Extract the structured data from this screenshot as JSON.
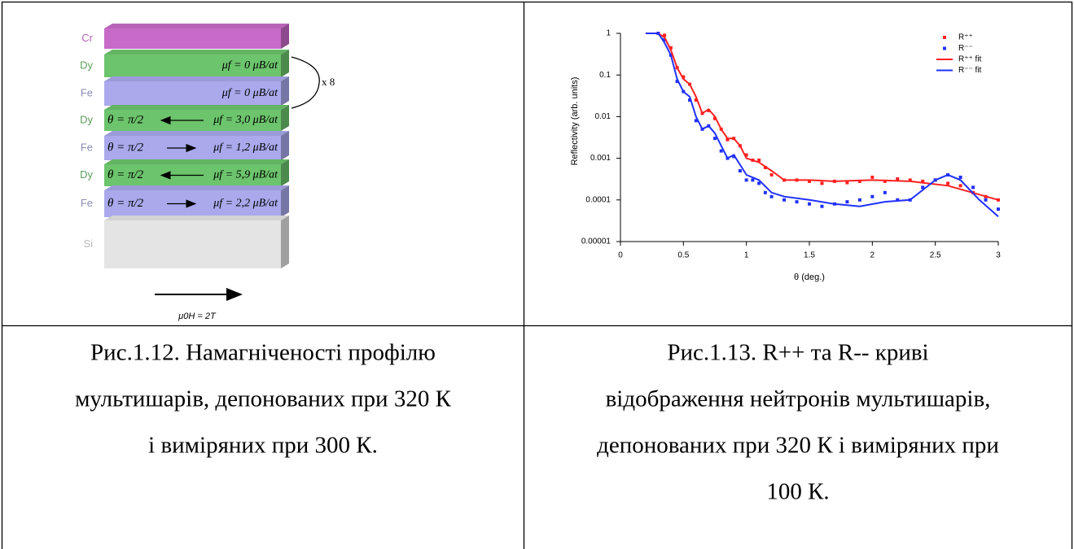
{
  "diagram": {
    "layers": [
      {
        "label": "Cr",
        "label_color": "#b463b4",
        "color": "#c86ac8"
      },
      {
        "label": "Dy",
        "label_color": "#5a9e5a",
        "color": "#6cc46c",
        "moment": "μf = 0 μB/at"
      },
      {
        "label": "Fe",
        "label_color": "#8a8ab8",
        "color": "#a9a9ec",
        "moment": "μf = 0 μB/at"
      },
      {
        "label": "Dy",
        "label_color": "#5a9e5a",
        "color": "#6cc46c",
        "angle": "θ = π/2",
        "arrow": "left",
        "moment": "μf = 3,0 μB/at"
      },
      {
        "label": "Fe",
        "label_color": "#8a8ab8",
        "color": "#a9a9ec",
        "angle": "θ = π/2",
        "arrow": "right",
        "moment": "μf = 1,2 μB/at"
      },
      {
        "label": "Dy",
        "label_color": "#5a9e5a",
        "color": "#6cc46c",
        "angle": "θ = π/2",
        "arrow": "left",
        "moment": "μf = 5,9 μB/at"
      },
      {
        "label": "Fe",
        "label_color": "#8a8ab8",
        "color": "#a9a9ec",
        "angle": "θ = π/2",
        "arrow": "right",
        "moment": "μf = 2,2 μB/at"
      },
      {
        "label": "Si",
        "label_color": "#bbbbbb",
        "color": "#e4e4e4"
      }
    ],
    "repeat": "x 8",
    "field": "μ0H = 2T"
  },
  "chart_data": {
    "type": "line",
    "xlabel": "θ (deg.)",
    "ylabel": "Reflectivity (arb. units)",
    "ylog": true,
    "xlim": [
      0,
      3
    ],
    "xticks": [
      0,
      0.5,
      1,
      1.5,
      2,
      2.5,
      3
    ],
    "ylim": [
      1e-05,
      1
    ],
    "yticks": [
      1,
      0.1,
      0.01,
      0.001,
      0.0001,
      {
        "value": 1e-05,
        "label": "0.00001"
      }
    ],
    "series": [
      {
        "name": "R⁺⁺",
        "color": "#ff2020",
        "style": "markers",
        "x": [
          0.3,
          0.35,
          0.4,
          0.45,
          0.5,
          0.55,
          0.6,
          0.65,
          0.7,
          0.75,
          0.8,
          0.85,
          0.9,
          0.95,
          1.0,
          1.05,
          1.1,
          1.15,
          1.2,
          1.3,
          1.4,
          1.5,
          1.6,
          1.7,
          1.8,
          1.9,
          2.0,
          2.1,
          2.2,
          2.3,
          2.4,
          2.5,
          2.6,
          2.7,
          2.8,
          2.9,
          3.0
        ],
        "values": [
          1,
          0.9,
          0.45,
          0.15,
          0.09,
          0.06,
          0.025,
          0.012,
          0.014,
          0.009,
          0.005,
          0.0028,
          0.003,
          0.002,
          0.0012,
          0.0009,
          0.0009,
          0.0006,
          0.0004,
          0.0003,
          0.0003,
          0.00028,
          0.00025,
          0.00028,
          0.00026,
          0.00028,
          0.00035,
          0.00028,
          0.00032,
          0.0003,
          0.00028,
          0.0003,
          0.00025,
          0.00022,
          0.00015,
          0.00012,
          0.0001
        ]
      },
      {
        "name": "R⁻⁻",
        "color": "#2030ff",
        "style": "markers",
        "x": [
          0.3,
          0.35,
          0.4,
          0.45,
          0.5,
          0.55,
          0.6,
          0.65,
          0.7,
          0.75,
          0.8,
          0.85,
          0.9,
          0.95,
          1.0,
          1.05,
          1.1,
          1.15,
          1.2,
          1.3,
          1.4,
          1.5,
          1.6,
          1.7,
          1.8,
          1.9,
          2.0,
          2.1,
          2.2,
          2.3,
          2.4,
          2.5,
          2.6,
          2.7,
          2.8,
          2.9,
          3.0
        ],
        "values": [
          1,
          0.7,
          0.3,
          0.07,
          0.04,
          0.025,
          0.008,
          0.005,
          0.006,
          0.003,
          0.0015,
          0.001,
          0.0011,
          0.0005,
          0.0003,
          0.0003,
          0.00025,
          0.00015,
          0.00012,
          0.0001,
          9e-05,
          8e-05,
          7e-05,
          8e-05,
          9e-05,
          0.0001,
          0.00012,
          0.00015,
          0.0001,
          0.0001,
          0.0002,
          0.0003,
          0.0004,
          0.00035,
          0.0002,
          0.0001,
          6e-05
        ]
      },
      {
        "name": "R⁺⁺ fit",
        "color": "#ff2020",
        "style": "line",
        "x": [
          0.2,
          0.3,
          0.35,
          0.4,
          0.45,
          0.5,
          0.55,
          0.6,
          0.65,
          0.7,
          0.75,
          0.8,
          0.85,
          0.9,
          0.95,
          1.0,
          1.1,
          1.2,
          1.3,
          1.5,
          1.7,
          2.0,
          2.3,
          2.6,
          3.0
        ],
        "values": [
          1,
          1,
          0.8,
          0.4,
          0.15,
          0.08,
          0.06,
          0.03,
          0.012,
          0.015,
          0.01,
          0.005,
          0.003,
          0.003,
          0.002,
          0.001,
          0.0008,
          0.0005,
          0.0003,
          0.0003,
          0.00028,
          0.0003,
          0.00028,
          0.00022,
          0.0001
        ]
      },
      {
        "name": "R⁻⁻ fit",
        "color": "#2030ff",
        "style": "line",
        "x": [
          0.2,
          0.3,
          0.35,
          0.4,
          0.45,
          0.5,
          0.55,
          0.6,
          0.65,
          0.7,
          0.75,
          0.8,
          0.85,
          0.9,
          0.95,
          1.0,
          1.1,
          1.2,
          1.3,
          1.5,
          1.7,
          1.9,
          2.1,
          2.3,
          2.5,
          2.6,
          2.7,
          2.85,
          3.0
        ],
        "values": [
          1,
          1,
          0.6,
          0.3,
          0.08,
          0.04,
          0.03,
          0.01,
          0.005,
          0.006,
          0.004,
          0.002,
          0.001,
          0.0012,
          0.0007,
          0.0004,
          0.0003,
          0.00015,
          0.00012,
          0.0001,
          8e-05,
          7e-05,
          9e-05,
          0.0001,
          0.0003,
          0.0004,
          0.0003,
          0.0001,
          4e-05
        ]
      }
    ]
  },
  "captions": [
    [
      "Рис.1.12. Намагніченості профілю",
      "мультишарів, депонованих при 320 К",
      "і виміряних при 300 К."
    ],
    [
      "Рис.1.13. R++  та R-- криві",
      "відображення нейтронів мультишарів,",
      "депонованих при 320 К і виміряних при",
      "100 К."
    ]
  ]
}
